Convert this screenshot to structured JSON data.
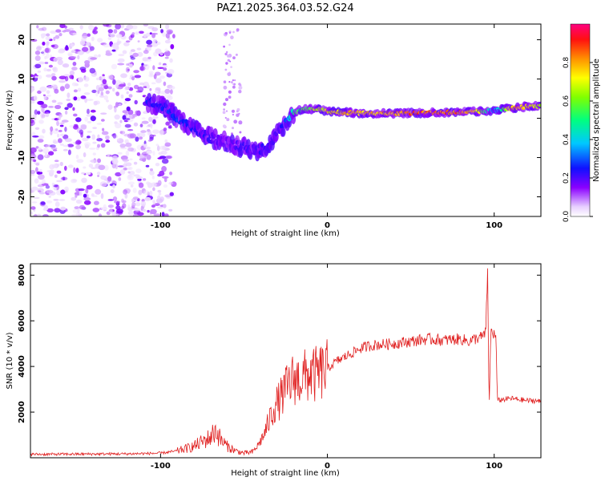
{
  "title": "PAZ1.2025.364.03.52.G24",
  "chart_data": [
    {
      "type": "heatmap",
      "xlabel": "Height of straight line (km)",
      "ylabel": "Frequency (Hz)",
      "xlim": [
        -178,
        128
      ],
      "ylim": [
        -25,
        24
      ],
      "xticks": [
        -100,
        0,
        100
      ],
      "yticks": [
        -20,
        -10,
        0,
        10,
        20
      ],
      "colorbar": {
        "label": "Normalized spectral amplitude",
        "range": [
          0,
          1
        ],
        "ticks": [
          0.0,
          0.2,
          0.4,
          0.6,
          0.8
        ],
        "tick_labels": [
          "0.0",
          "0.2",
          "0.4",
          "0.6",
          "0.8"
        ]
      },
      "ridge": {
        "height_km": [
          -108,
          -100,
          -90,
          -80,
          -70,
          -60,
          -50,
          -45,
          -40,
          -35,
          -30,
          -25,
          -20,
          -15,
          -10,
          -5,
          0,
          10,
          20,
          40,
          60,
          80,
          90,
          100,
          110,
          120,
          128
        ],
        "frequency_hz": [
          4,
          3.5,
          0,
          -3,
          -5,
          -6,
          -7.5,
          -8,
          -8,
          -7,
          -4,
          -1,
          1.5,
          2.2,
          2.4,
          2.3,
          1.8,
          1.5,
          1.3,
          1.3,
          1.4,
          1.6,
          1.7,
          2,
          2.5,
          3,
          3.2
        ],
        "amplitude": [
          0.25,
          0.25,
          0.28,
          0.25,
          0.22,
          0.15,
          0.25,
          0.2,
          0.25,
          0.2,
          0.2,
          0.3,
          0.5,
          0.6,
          0.65,
          0.7,
          0.75,
          0.8,
          0.8,
          0.85,
          0.9,
          0.9,
          0.75,
          0.3,
          0.85,
          0.8,
          0.7
        ]
      },
      "noise_region_km": [
        -178,
        -100
      ]
    },
    {
      "type": "line",
      "xlabel": "Height of straight line (km)",
      "ylabel": "SNR (10 * v/v)",
      "xlim": [
        -178,
        128
      ],
      "ylim": [
        0,
        8500
      ],
      "xticks": [
        -100,
        0,
        100
      ],
      "yticks": [
        2000,
        4000,
        6000,
        8000
      ],
      "color": "#e02020",
      "series": [
        {
          "name": "SNR",
          "x": [
            -178,
            -150,
            -120,
            -100,
            -90,
            -80,
            -75,
            -70,
            -67,
            -64,
            -60,
            -55,
            -50,
            -45,
            -42,
            -38,
            -35,
            -32,
            -28,
            -25,
            -22,
            -20,
            -18,
            -15,
            -12,
            -10,
            -8,
            -5,
            -2,
            0,
            5,
            10,
            15,
            20,
            25,
            30,
            40,
            50,
            60,
            70,
            80,
            85,
            90,
            93,
            95,
            96,
            97,
            98,
            100,
            101,
            102,
            105,
            110,
            115,
            120,
            125,
            128
          ],
          "y": [
            150,
            160,
            170,
            200,
            300,
            500,
            700,
            900,
            1200,
            800,
            500,
            300,
            200,
            250,
            500,
            1000,
            1600,
            2200,
            2600,
            3000,
            3300,
            3500,
            3400,
            3500,
            3600,
            3700,
            3600,
            3700,
            3800,
            3900,
            4200,
            4400,
            4600,
            4800,
            4900,
            4950,
            5000,
            5100,
            5200,
            5150,
            5200,
            5100,
            5250,
            5300,
            5500,
            8300,
            2100,
            5600,
            5400,
            5300,
            2500,
            2550,
            2600,
            2550,
            2500,
            2500,
            2450
          ]
        }
      ]
    }
  ]
}
